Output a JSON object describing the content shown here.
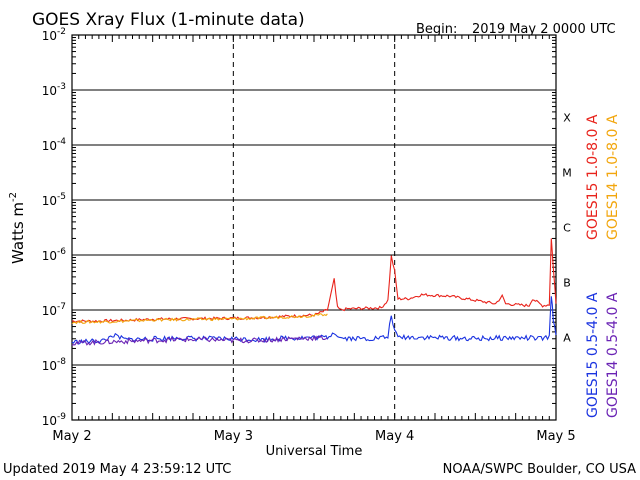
{
  "header": {
    "title": "GOES Xray Flux (1-minute data)",
    "begin_label": "Begin:",
    "begin_value": "2019 May 2 0000 UTC"
  },
  "footer": {
    "updated": "Updated 2019 May  4 23:59:12 UTC",
    "credit": "NOAA/SWPC Boulder, CO USA"
  },
  "colors": {
    "goes15_long": "#e8231b",
    "goes14_long": "#f2a60d",
    "goes15_short": "#1b33e0",
    "goes14_short": "#6a23b4"
  },
  "chart_data": {
    "type": "line",
    "xlabel": "Universal Time",
    "ylabel_main": "Watts m",
    "ylabel_exp": "-2",
    "yscale": "log",
    "xlim": [
      0,
      72
    ],
    "ylim": [
      1e-09,
      0.01
    ],
    "x_ticks": [
      {
        "x": 0,
        "label": "May 2"
      },
      {
        "x": 24,
        "label": "May 3"
      },
      {
        "x": 48,
        "label": "May 4"
      },
      {
        "x": 72,
        "label": "May 5"
      }
    ],
    "y_ticks": [
      {
        "exp": -2,
        "base": "10",
        "sup": "-2"
      },
      {
        "exp": -3,
        "base": "10",
        "sup": "-3"
      },
      {
        "exp": -4,
        "base": "10",
        "sup": "-4"
      },
      {
        "exp": -5,
        "base": "10",
        "sup": "-5"
      },
      {
        "exp": -6,
        "base": "10",
        "sup": "-6"
      },
      {
        "exp": -7,
        "base": "10",
        "sup": "-7"
      },
      {
        "exp": -8,
        "base": "10",
        "sup": "-8"
      },
      {
        "exp": -9,
        "base": "10",
        "sup": "-9"
      }
    ],
    "flare_classes": [
      {
        "label": "X",
        "exp": -3.5
      },
      {
        "label": "M",
        "exp": -4.5
      },
      {
        "label": "C",
        "exp": -5.5
      },
      {
        "label": "B",
        "exp": -6.5
      },
      {
        "label": "A",
        "exp": -7.5
      }
    ],
    "legend_right": [
      {
        "text": "GOES15 1.0-8.0 A",
        "color": "#e8231b"
      },
      {
        "text": "GOES14 1.0-8.0 A",
        "color": "#f2a60d"
      }
    ],
    "legend_bottom": [
      {
        "text": "GOES15 0.5-4.0 A",
        "color": "#1b33e0"
      },
      {
        "text": "GOES14 0.5-4.0 A",
        "color": "#6a23b4"
      }
    ],
    "series": [
      {
        "name": "GOES15 1.0-8.0 A",
        "color": "#e8231b",
        "x": [
          0,
          4,
          8,
          12,
          16,
          20,
          24,
          28,
          30,
          32,
          36,
          38,
          39,
          39.5,
          40,
          41,
          46,
          47,
          47.5,
          48,
          48.5,
          50,
          52,
          56,
          60,
          63,
          64,
          64.5,
          66,
          68,
          68.5,
          70,
          71,
          71.3,
          71.6,
          72
        ],
        "y": [
          6.3e-08,
          6.3e-08,
          6.5e-08,
          6.8e-08,
          6.9e-08,
          7e-08,
          7.1e-08,
          7.3e-08,
          7.5e-08,
          7.7e-08,
          8.1e-08,
          1e-07,
          3.6e-07,
          1.1e-07,
          1e-07,
          1.05e-07,
          1.1e-07,
          1.5e-07,
          9.5e-07,
          5e-07,
          1.6e-07,
          1.6e-07,
          1.9e-07,
          1.8e-07,
          1.5e-07,
          1.3e-07,
          1.8e-07,
          1.3e-07,
          1.25e-07,
          1.2e-07,
          1.6e-07,
          1.2e-07,
          1.25e-07,
          2e-06,
          6e-07,
          1.3e-07
        ]
      },
      {
        "name": "GOES14 1.0-8.0 A",
        "color": "#f2a60d",
        "x": [
          0,
          4,
          8,
          12,
          16,
          20,
          24,
          28,
          32,
          36,
          38
        ],
        "y": [
          6e-08,
          6.1e-08,
          6.3e-08,
          6.6e-08,
          6.7e-08,
          6.8e-08,
          6.9e-08,
          7.1e-08,
          7.5e-08,
          7.9e-08,
          8.5e-08
        ]
      },
      {
        "name": "GOES15 0.5-4.0 A",
        "color": "#1b33e0",
        "x": [
          0,
          3,
          5,
          6,
          8,
          12,
          16,
          20,
          24,
          28,
          32,
          38,
          39,
          40,
          44,
          47,
          47.5,
          48,
          48.5,
          52,
          56,
          60,
          64,
          68,
          70,
          71,
          71.3,
          71.6,
          72
        ],
        "y": [
          2.6e-08,
          2.7e-08,
          2.8e-08,
          3.5e-08,
          2.9e-08,
          3e-08,
          3.1e-08,
          3e-08,
          3e-08,
          2.9e-08,
          3.1e-08,
          3.2e-08,
          4e-08,
          3.1e-08,
          3e-08,
          3.2e-08,
          8.5e-08,
          4e-08,
          3.2e-08,
          3.2e-08,
          3.1e-08,
          3e-08,
          3.1e-08,
          3.1e-08,
          3e-08,
          3.2e-08,
          1.9e-07,
          7e-08,
          3.5e-08
        ]
      },
      {
        "name": "GOES14 0.5-4.0 A",
        "color": "#6a23b4",
        "x": [
          0,
          4,
          8,
          12,
          16,
          20,
          24,
          28,
          32,
          36,
          38
        ],
        "y": [
          2.5e-08,
          2.6e-08,
          2.7e-08,
          2.8e-08,
          2.9e-08,
          2.9e-08,
          2.8e-08,
          2.8e-08,
          3e-08,
          3.1e-08,
          3.1e-08
        ]
      }
    ]
  }
}
